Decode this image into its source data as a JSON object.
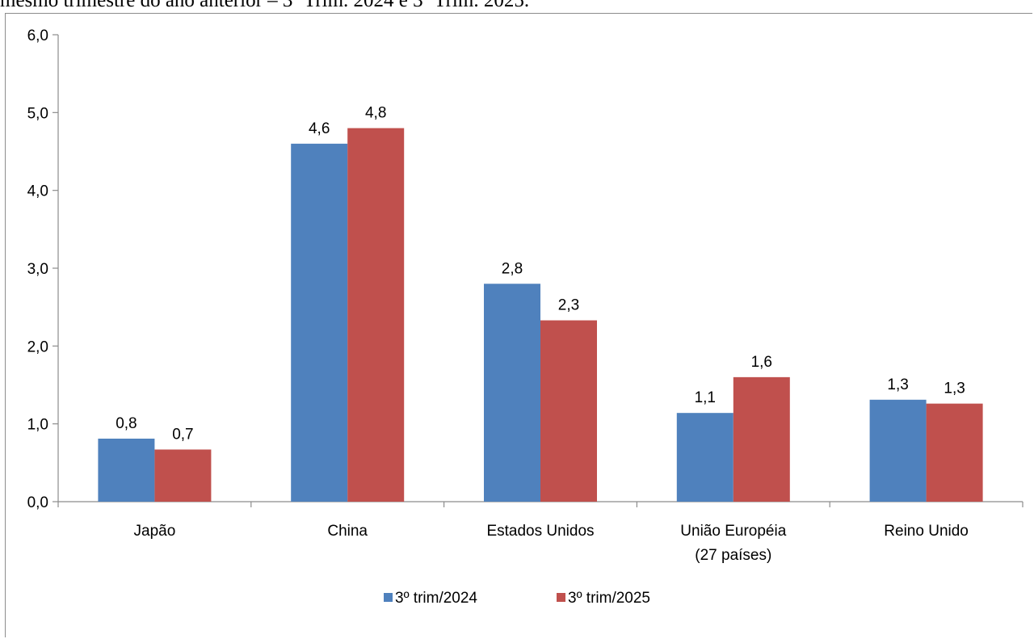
{
  "caption": "mesmo trimestre do ano anterior – 3º Trim. 2024 e 3º Trim. 2025.",
  "chart_data": {
    "type": "bar",
    "categories": [
      [
        "Japão"
      ],
      [
        "China"
      ],
      [
        "Estados Unidos"
      ],
      [
        "União Européia",
        "(27 países)"
      ],
      [
        "Reino Unido"
      ]
    ],
    "series": [
      {
        "name": "3º trim/2024",
        "color": "#4f81bd",
        "values": [
          0.81,
          4.6,
          2.8,
          1.14,
          1.31
        ],
        "labels": [
          "0,8",
          "4,6",
          "2,8",
          "1,1",
          "1,3"
        ]
      },
      {
        "name": "3º trim/2025",
        "color": "#c0504d",
        "values": [
          0.67,
          4.8,
          2.33,
          1.6,
          1.26
        ],
        "labels": [
          "0,7",
          "4,8",
          "2,3",
          "1,6",
          "1,3"
        ]
      }
    ],
    "ylim": [
      0,
      6
    ],
    "yticks": [
      0,
      1,
      2,
      3,
      4,
      5,
      6
    ],
    "ytick_labels": [
      "0,0",
      "1,0",
      "2,0",
      "3,0",
      "4,0",
      "5,0",
      "6,0"
    ],
    "grid": false,
    "legend_position": "bottom"
  }
}
